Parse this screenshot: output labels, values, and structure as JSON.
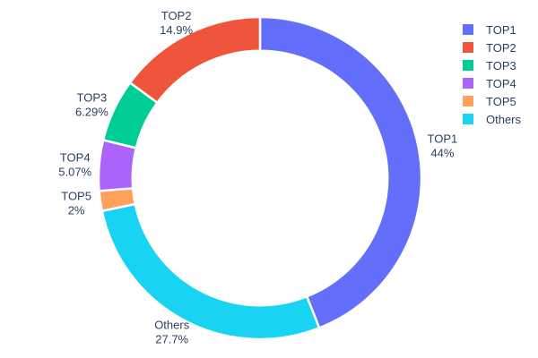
{
  "chart_data": {
    "type": "pie",
    "title": "",
    "hole": 0.79,
    "direction": "clockwise",
    "start_angle": "top",
    "legend_position": "right",
    "background_color": "#ffffff",
    "text_color": "#2a3f5f",
    "slice_border_color": "#ffffff",
    "slices": [
      {
        "label": "TOP1",
        "value": 44.0,
        "percent_label": "44%",
        "color": "#636EFA"
      },
      {
        "label": "TOP2",
        "value": 14.9,
        "percent_label": "14.9%",
        "color": "#EF553B"
      },
      {
        "label": "TOP3",
        "value": 6.29,
        "percent_label": "6.29%",
        "color": "#00CC96"
      },
      {
        "label": "TOP4",
        "value": 5.07,
        "percent_label": "5.07%",
        "color": "#AB63FA"
      },
      {
        "label": "TOP5",
        "value": 2.0,
        "percent_label": "2%",
        "color": "#FFA15A"
      },
      {
        "label": "Others",
        "value": 27.7,
        "percent_label": "27.7%",
        "color": "#19D3F3"
      }
    ],
    "clockwise_order": [
      "TOP1",
      "Others",
      "TOP5",
      "TOP4",
      "TOP3",
      "TOP2"
    ],
    "legend_order": [
      "TOP1",
      "TOP2",
      "TOP3",
      "TOP4",
      "TOP5",
      "Others"
    ]
  }
}
